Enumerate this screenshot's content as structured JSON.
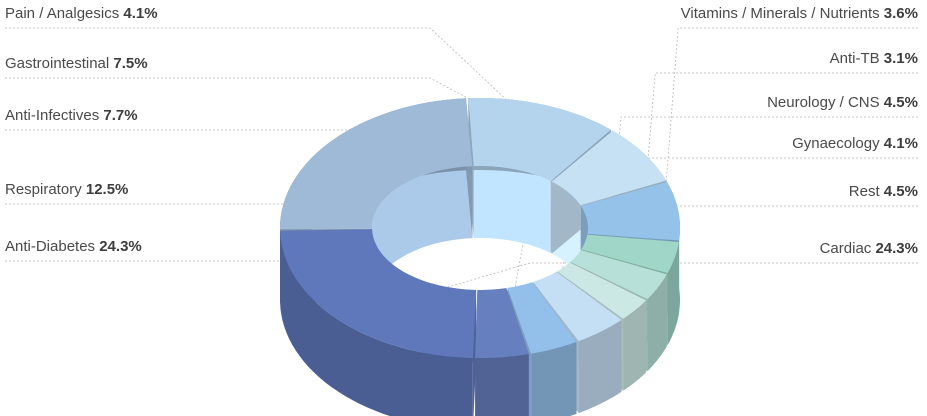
{
  "chart_data": {
    "type": "pie",
    "variant": "3d-donut",
    "title": "",
    "legend": "none",
    "segments": [
      {
        "name": "Cardiac",
        "value": 24.3,
        "value_label": "24.3%",
        "color": "#5f78bc"
      },
      {
        "name": "Anti-Diabetes",
        "value": 24.3,
        "value_label": "24.3%",
        "color": "#9ebad7"
      },
      {
        "name": "Respiratory",
        "value": 12.5,
        "value_label": "12.5%",
        "color": "#b4d4ee"
      },
      {
        "name": "Anti-Infectives",
        "value": 7.7,
        "value_label": "7.7%",
        "color": "#c6e0f4"
      },
      {
        "name": "Gastrointestinal",
        "value": 7.5,
        "value_label": "7.5%",
        "color": "#95c2e8"
      },
      {
        "name": "Pain / Analgesics",
        "value": 4.1,
        "value_label": "4.1%",
        "color": "#9fd6c8"
      },
      {
        "name": "Vitamins / Minerals / Nutrients",
        "value": 3.6,
        "value_label": "3.6%",
        "color": "#b6e0d8"
      },
      {
        "name": "Anti-TB",
        "value": 3.1,
        "value_label": "3.1%",
        "color": "#cce8e4"
      },
      {
        "name": "Neurology / CNS",
        "value": 4.5,
        "value_label": "4.5%",
        "color": "#c4def4"
      },
      {
        "name": "Gynaecology",
        "value": 4.1,
        "value_label": "4.1%",
        "color": "#93c0ea"
      },
      {
        "name": "Rest",
        "value": 4.5,
        "value_label": "4.5%",
        "color": "#667fbe"
      }
    ]
  }
}
